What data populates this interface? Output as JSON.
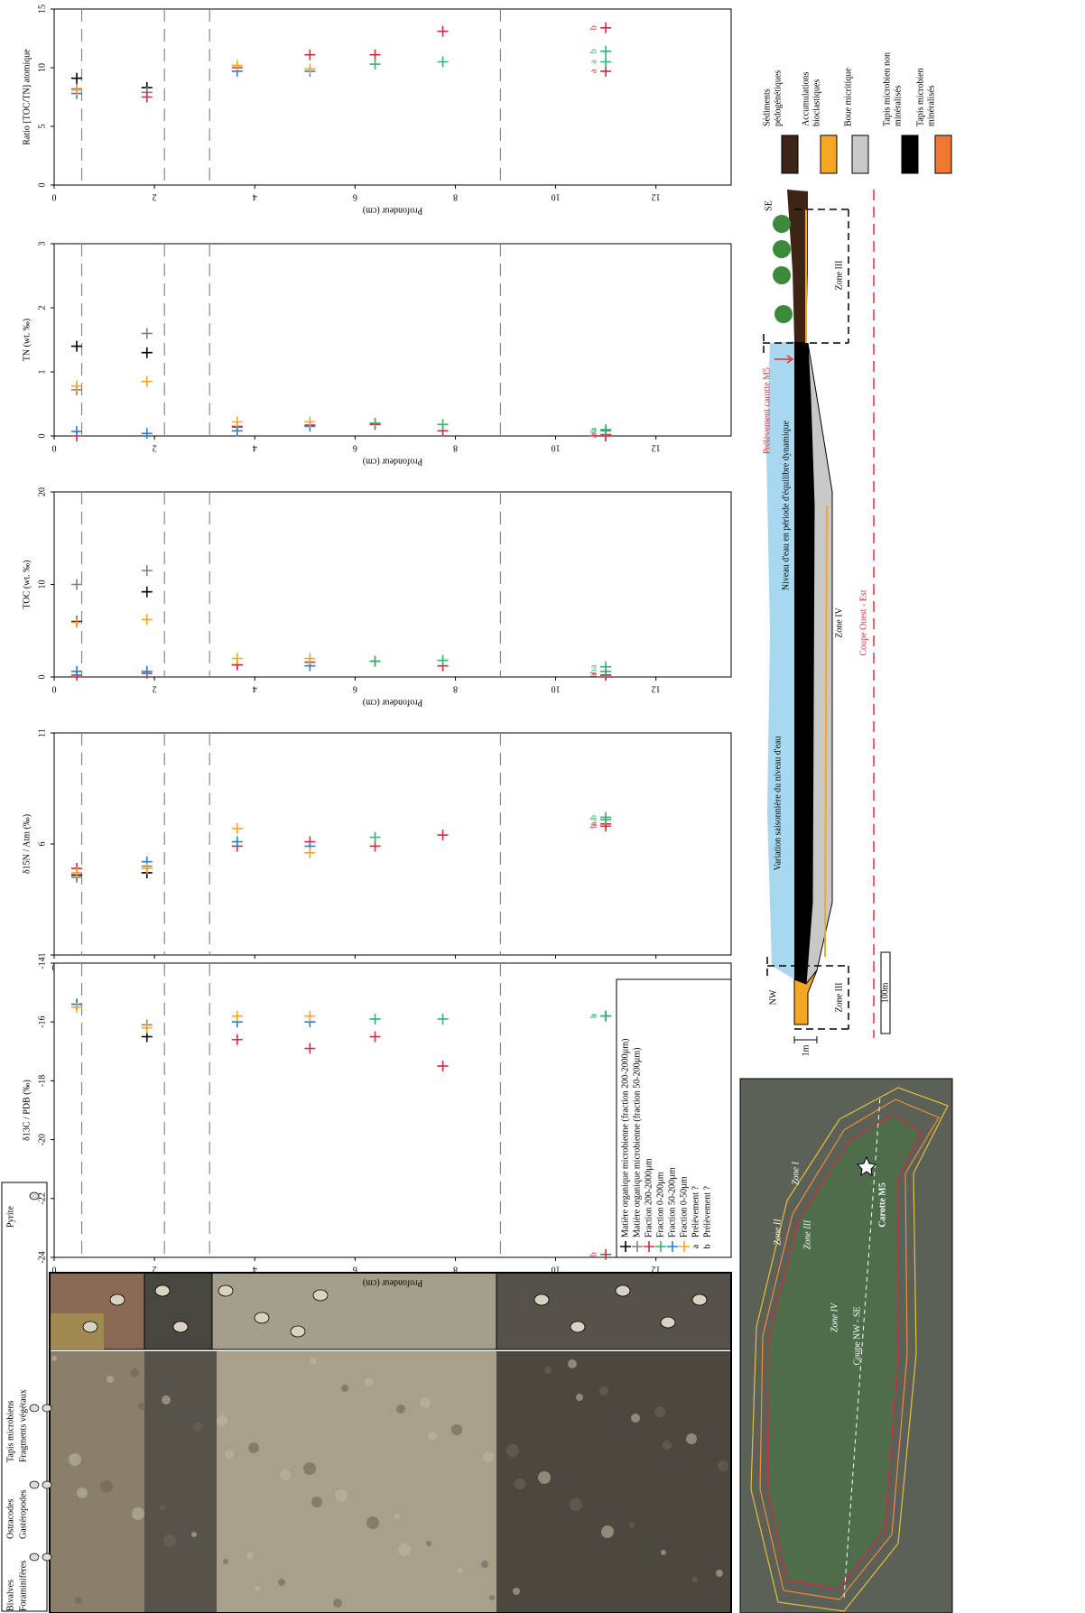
{
  "chart_data": [
    {
      "type": "scatter",
      "y_label": "Ratio [TOC/TN] atomique",
      "x_label": "Profondeur (cm)",
      "xlim": [
        0,
        13.5
      ],
      "xticks": [
        0,
        2,
        4,
        6,
        8,
        10,
        12
      ],
      "ylim": [
        0,
        15
      ],
      "yticks": [
        0,
        5,
        10,
        15
      ],
      "series": [
        {
          "color": "#000000",
          "x": [
            0.45,
            1.85
          ],
          "values": [
            9.1,
            8.3
          ]
        },
        {
          "color": "#808080",
          "x": [
            0.45,
            1.85
          ],
          "values": [
            8.2,
            7.9
          ]
        },
        {
          "color": "#d42a3a",
          "x": [
            1.85,
            3.65,
            5.1,
            6.4,
            7.75,
            11,
            11
          ],
          "values": [
            7.5,
            10.0,
            11.1,
            11.1,
            13.1,
            9.7,
            13.4
          ],
          "point_labels": [
            null,
            null,
            null,
            null,
            null,
            "a",
            "b"
          ]
        },
        {
          "color": "#2bb673",
          "x": [
            6.4,
            7.75,
            11,
            11
          ],
          "values": [
            10.3,
            10.5,
            10.5,
            11.4
          ],
          "point_labels": [
            null,
            null,
            "a",
            "b"
          ]
        },
        {
          "color": "#2d7fd0",
          "x": [
            0.45,
            3.65,
            5.1
          ],
          "values": [
            7.8,
            9.7,
            9.7
          ]
        },
        {
          "color": "#f5a623",
          "x": [
            0.45,
            3.65,
            5.1
          ],
          "values": [
            8.1,
            10.2,
            9.9
          ]
        }
      ]
    },
    {
      "type": "scatter",
      "y_label": "TN (wt. ‰)",
      "x_label": "Profondeur (cm)",
      "xlim": [
        0,
        13.5
      ],
      "xticks": [
        0,
        2,
        4,
        6,
        8,
        10,
        12
      ],
      "ylim": [
        0,
        3
      ],
      "yticks": [
        0,
        1,
        2,
        3
      ],
      "series": [
        {
          "color": "#000000",
          "x": [
            0.45,
            1.85
          ],
          "values": [
            1.4,
            1.3
          ]
        },
        {
          "color": "#808080",
          "x": [
            0.45,
            1.85,
            3.65
          ],
          "values": [
            0.72,
            1.6,
            0.15
          ]
        },
        {
          "color": "#d42a3a",
          "x": [
            0.45,
            3.65,
            5.1,
            6.4,
            7.75,
            11,
            11
          ],
          "values": [
            0.0,
            0.14,
            0.17,
            0.18,
            0.08,
            0.0,
            0.02
          ],
          "point_labels": [
            null,
            null,
            null,
            null,
            null,
            "a",
            "b"
          ]
        },
        {
          "color": "#2bb673",
          "x": [
            6.4,
            7.75,
            11,
            11
          ],
          "values": [
            0.2,
            0.18,
            0.1,
            0.08
          ],
          "point_labels": [
            null,
            null,
            "a",
            "b"
          ]
        },
        {
          "color": "#2d7fd0",
          "x": [
            0.45,
            1.85,
            3.65,
            5.1
          ],
          "values": [
            0.07,
            0.04,
            0.08,
            0.15
          ]
        },
        {
          "color": "#f5a623",
          "x": [
            0.45,
            1.85,
            3.65,
            5.1
          ],
          "values": [
            0.78,
            0.85,
            0.22,
            0.22
          ]
        }
      ]
    },
    {
      "type": "scatter",
      "y_label": "TOC (wt. ‰)",
      "x_label": "Profondeur (cm)",
      "xlim": [
        0,
        13.5
      ],
      "xticks": [
        0,
        2,
        4,
        6,
        8,
        10,
        12
      ],
      "ylim": [
        0,
        20
      ],
      "yticks": [
        0,
        10,
        20
      ],
      "series": [
        {
          "color": "#000000",
          "x": [
            0.45,
            1.85,
            3.65
          ],
          "values": [
            6.0,
            9.2,
            1.3
          ]
        },
        {
          "color": "#808080",
          "x": [
            0.45,
            1.85
          ],
          "values": [
            10.0,
            11.5
          ]
        },
        {
          "color": "#d42a3a",
          "x": [
            0.45,
            1.85,
            3.65,
            5.1,
            6.4,
            7.75,
            11,
            11
          ],
          "values": [
            0.2,
            0.4,
            1.3,
            1.6,
            1.7,
            1.2,
            0.2,
            0.2
          ],
          "point_labels": [
            null,
            null,
            null,
            null,
            null,
            null,
            "a",
            "b"
          ]
        },
        {
          "color": "#2bb673",
          "x": [
            6.4,
            7.75,
            11,
            11
          ],
          "values": [
            1.7,
            1.8,
            1.1,
            0.6
          ],
          "point_labels": [
            null,
            null,
            "a",
            "b"
          ]
        },
        {
          "color": "#2d7fd0",
          "x": [
            0.45,
            1.85,
            5.1
          ],
          "values": [
            0.6,
            0.6,
            1.2
          ]
        },
        {
          "color": "#f5a623",
          "x": [
            0.45,
            1.85,
            3.65,
            5.1
          ],
          "values": [
            5.9,
            6.2,
            2.0,
            2.0
          ]
        }
      ]
    },
    {
      "type": "scatter",
      "y_label": "δ15N / Atm (‰)",
      "x_label": "Profondeur (cm)",
      "xlim": [
        0,
        13.5
      ],
      "xticks": [
        0,
        2,
        4,
        6,
        8,
        10,
        12
      ],
      "ylim": [
        1,
        11
      ],
      "yticks": [
        1,
        6,
        11
      ],
      "series": [
        {
          "color": "#000000",
          "x": [
            0.45,
            1.85
          ],
          "values": [
            4.6,
            4.7
          ]
        },
        {
          "color": "#808080",
          "x": [
            0.45,
            1.85
          ],
          "values": [
            4.5,
            5.0
          ]
        },
        {
          "color": "#d42a3a",
          "x": [
            0.45,
            3.65,
            5.1,
            6.4,
            7.75,
            11,
            11
          ],
          "values": [
            4.9,
            5.9,
            6.1,
            5.9,
            6.4,
            6.9,
            6.8
          ],
          "point_labels": [
            null,
            null,
            null,
            null,
            null,
            "a",
            "b"
          ]
        },
        {
          "color": "#2bb673",
          "x": [
            6.4,
            11,
            11
          ],
          "values": [
            6.3,
            7.1,
            7.2
          ],
          "point_labels": [
            null,
            "a",
            "b"
          ]
        },
        {
          "color": "#2d7fd0",
          "x": [
            1.85,
            3.65,
            5.1
          ],
          "values": [
            5.2,
            6.1,
            5.9
          ]
        },
        {
          "color": "#f5a623",
          "x": [
            0.45,
            1.85,
            3.65,
            5.1
          ],
          "values": [
            4.7,
            4.9,
            6.7,
            5.6
          ]
        }
      ]
    },
    {
      "type": "scatter",
      "y_label": "δ13C / PDB (‰)",
      "x_label": "Profondeur (cm)",
      "xlim": [
        0,
        13.5
      ],
      "xticks": [
        0,
        2,
        4,
        6,
        8,
        10,
        12
      ],
      "ylim": [
        -24,
        -14
      ],
      "yticks": [
        -24,
        -22,
        -20,
        -18,
        -16,
        -14
      ],
      "legend": "lower right",
      "series": [
        {
          "name": "Matière organique microbienne (fraction 200-2000µm)",
          "color": "#000000",
          "x": [
            0.45,
            1.85
          ],
          "values": [
            -15.4,
            -16.5
          ]
        },
        {
          "name": "Matière organique microbienne (fraction 50-200µm)",
          "color": "#808080",
          "x": [
            0.45,
            1.85
          ],
          "values": [
            -15.4,
            -16.1
          ]
        },
        {
          "name": "Fraction 200-2000µm",
          "color": "#d42a3a",
          "x": [
            3.65,
            5.1,
            6.4,
            7.75,
            11,
            11
          ],
          "values": [
            -16.6,
            -16.9,
            -16.5,
            -17.5,
            -15.8,
            -23.9
          ],
          "point_labels": [
            null,
            null,
            null,
            null,
            "a",
            "b"
          ]
        },
        {
          "name": "Fraction 0-200µm",
          "color": "#2bb673",
          "x": [
            6.4,
            7.75,
            11,
            11
          ],
          "values": [
            -15.9,
            -15.9,
            -15.8,
            -15.8
          ],
          "point_labels": [
            null,
            null,
            "a",
            "b"
          ]
        },
        {
          "name": "Fraction 50-200µm",
          "color": "#2d7fd0",
          "x": [
            0.45,
            3.65,
            5.1
          ],
          "values": [
            -15.4,
            -16.0,
            -16.0
          ]
        },
        {
          "name": "Fraction 0-50µm",
          "color": "#f5a623",
          "x": [
            0.45,
            1.85,
            3.65,
            5.1
          ],
          "values": [
            -15.5,
            -16.2,
            -15.8,
            -15.8
          ]
        }
      ],
      "legend_notes": [
        {
          "marker": "a",
          "text": "Prélèvement ?"
        },
        {
          "marker": "b",
          "text": "Prélèvement ?"
        }
      ]
    }
  ],
  "depth_boundaries": [
    0.55,
    2.2,
    3.1,
    8.9
  ],
  "core_legend": [
    "Bivalves",
    "Foraminifères",
    "Ostracodes",
    "Gastéropodes",
    "Tapis microbiens",
    "Fragments végétaux",
    "Pyrite"
  ],
  "lithology_legend": [
    {
      "lines": [
        "Sédiments",
        "pédogénétiques"
      ],
      "color": "#3d2416"
    },
    {
      "lines": [
        "Accumulations",
        "bioclastiques"
      ],
      "color": "#f5a623"
    },
    {
      "lines": [
        "Boue micritique"
      ],
      "color": "#c8c8c8"
    },
    {
      "lines": [
        "Tapis microbien non",
        "minéralisés"
      ],
      "color": "#000000"
    },
    {
      "lines": [
        "Tapis microbien",
        "minéralisés"
      ],
      "color": "#f07830"
    }
  ],
  "section": {
    "se": "SE",
    "nw": "NW",
    "zones": [
      "Zone III",
      "Zone IV",
      "Zone III"
    ],
    "title": "Coupe Ouest - Est",
    "sample": "Prélèvement carotte M5",
    "water_level": "Niveau d'eau en période d'équilibre dynamique",
    "seasonal": "Variation saisonnière du niveau d'eau",
    "scale_v": "1m",
    "scale_h": "100m"
  },
  "map": {
    "zones": [
      "Zone I",
      "Zone II",
      "Zone III",
      "Zone IV"
    ],
    "transect": "Coupe NW - SE",
    "core": "Carotte M5"
  }
}
